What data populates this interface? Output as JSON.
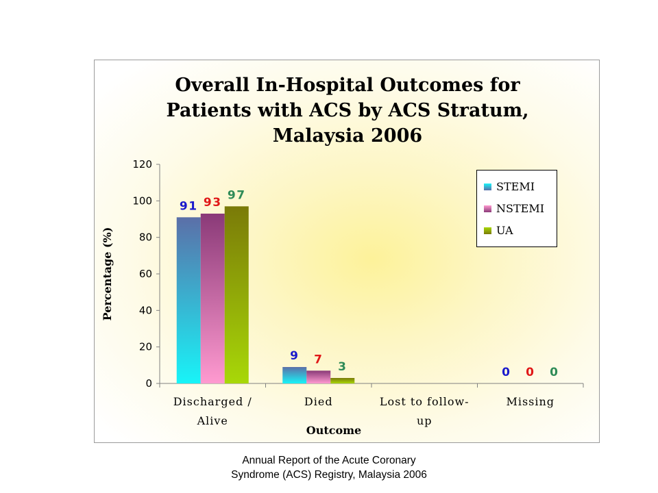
{
  "chart_data": {
    "type": "bar",
    "title": [
      "Overall In-Hospital Outcomes for",
      "Patients with ACS by ACS Stratum,",
      "Malaysia 2006"
    ],
    "xlabel": "Outcome",
    "ylabel": "Percentage (%)",
    "ylim": [
      0,
      120
    ],
    "yticks": [
      0,
      20,
      40,
      60,
      80,
      100,
      120
    ],
    "categories": [
      [
        "Discharged /",
        "Alive"
      ],
      [
        "Died"
      ],
      [
        "Lost to follow-",
        "up"
      ],
      [
        "Missing"
      ]
    ],
    "series": [
      {
        "name": "STEMI",
        "values": [
          91,
          9,
          null,
          0
        ],
        "data_labels": [
          "91",
          "9",
          "",
          "0"
        ],
        "label_color": "#1a1acc",
        "gradient": [
          "#5b6fa8",
          "#18f4f8"
        ]
      },
      {
        "name": "NSTEMI",
        "values": [
          93,
          7,
          null,
          0
        ],
        "data_labels": [
          "93",
          "7",
          "",
          "0"
        ],
        "label_color": "#e01818",
        "gradient": [
          "#8a3a78",
          "#ff9ad0"
        ]
      },
      {
        "name": "UA",
        "values": [
          97,
          3,
          null,
          0
        ],
        "data_labels": [
          "97",
          "3",
          "",
          "0"
        ],
        "label_color": "#2e8b57",
        "gradient": [
          "#7a7a08",
          "#a8d808"
        ]
      }
    ],
    "grid": false,
    "legend_position": "top-right"
  },
  "caption": [
    "Annual Report of the Acute Coronary",
    "Syndrome (ACS) Registry, Malaysia 2006"
  ]
}
